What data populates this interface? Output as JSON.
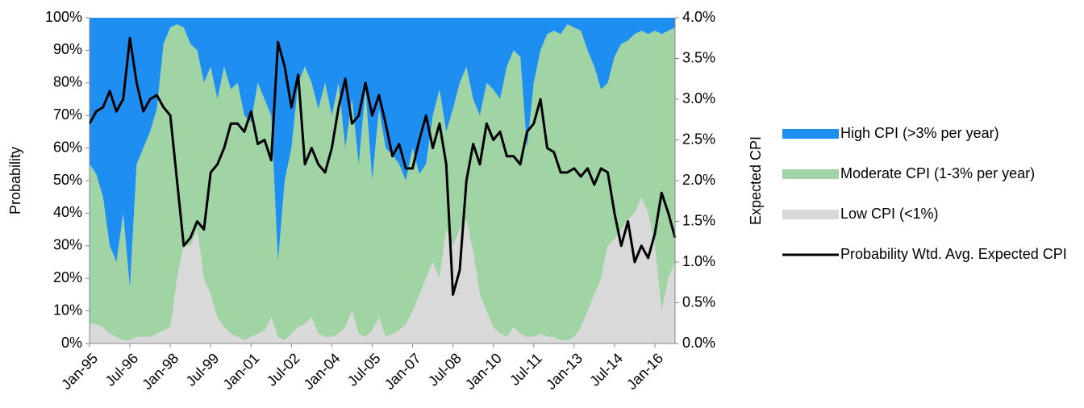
{
  "chart_data": {
    "type": "area",
    "y_label": "Probability",
    "y2_label": "Expected CPI",
    "categories": [
      "Jan-95",
      null,
      null,
      null,
      null,
      null,
      "Jul-96",
      null,
      null,
      null,
      null,
      null,
      "Jan-98",
      null,
      null,
      null,
      null,
      null,
      "Jul-99",
      null,
      null,
      null,
      null,
      null,
      "Jan-01",
      null,
      null,
      null,
      null,
      null,
      "Jul-02",
      null,
      null,
      null,
      null,
      null,
      "Jan-04",
      null,
      null,
      null,
      null,
      null,
      "Jul-05",
      null,
      null,
      null,
      null,
      null,
      "Jan-07",
      null,
      null,
      null,
      null,
      null,
      "Jul-08",
      null,
      null,
      null,
      null,
      null,
      "Jan-10",
      null,
      null,
      null,
      null,
      null,
      "Jul-11",
      null,
      null,
      null,
      null,
      null,
      "Jan-13",
      null,
      null,
      null,
      null,
      null,
      "Jul-14",
      null,
      null,
      null,
      null,
      null,
      "Jan-16",
      null,
      null,
      null
    ],
    "series": [
      {
        "name": "High CPI (>3% per year)",
        "type": "area",
        "color": "#1f8ef1",
        "values": [
          45,
          48,
          55,
          70,
          75,
          60,
          83,
          45,
          40,
          35,
          28,
          8,
          3,
          2,
          3,
          8,
          10,
          20,
          15,
          25,
          15,
          22,
          20,
          30,
          32,
          20,
          25,
          30,
          75,
          50,
          40,
          20,
          15,
          20,
          28,
          20,
          30,
          20,
          40,
          25,
          45,
          22,
          50,
          28,
          40,
          42,
          45,
          50,
          40,
          48,
          45,
          30,
          22,
          35,
          28,
          20,
          15,
          25,
          30,
          20,
          22,
          25,
          15,
          10,
          12,
          40,
          20,
          10,
          5,
          4,
          5,
          2,
          3,
          4,
          10,
          15,
          22,
          20,
          12,
          8,
          7,
          5,
          4,
          5,
          4,
          5,
          4,
          3
        ]
      },
      {
        "name": "Moderate CPI (1-3% per year)",
        "type": "area",
        "color": "#a0d4a4",
        "values": [
          49,
          46,
          40,
          27,
          23,
          39,
          16,
          53,
          58,
          63,
          69,
          88,
          92,
          78,
          67,
          62,
          55,
          60,
          70,
          67,
          80,
          75,
          78,
          69,
          66,
          77,
          71,
          62,
          23,
          49,
          57,
          75,
          79,
          72,
          69,
          78,
          68,
          77,
          55,
          65,
          52,
          76,
          46,
          64,
          58,
          55,
          51,
          44,
          50,
          37,
          35,
          45,
          58,
          30,
          42,
          45,
          47,
          47,
          55,
          70,
          73,
          72,
          83,
          85,
          85,
          58,
          78,
          87,
          93,
          94,
          94,
          97,
          95,
          91,
          80,
          70,
          58,
          50,
          56,
          57,
          55,
          55,
          51,
          55,
          66,
          85,
          76,
          72
        ]
      },
      {
        "name": "Low CPI (<1%)",
        "type": "area",
        "color": "#d9d9d9",
        "values": [
          6,
          6,
          5,
          3,
          2,
          1,
          1,
          2,
          2,
          2,
          3,
          4,
          5,
          20,
          30,
          30,
          35,
          20,
          15,
          8,
          5,
          3,
          2,
          1,
          2,
          3,
          4,
          8,
          2,
          1,
          3,
          5,
          6,
          8,
          3,
          2,
          2,
          3,
          5,
          10,
          3,
          2,
          4,
          8,
          2,
          3,
          4,
          6,
          10,
          15,
          20,
          25,
          20,
          35,
          30,
          35,
          38,
          28,
          15,
          10,
          5,
          3,
          2,
          5,
          3,
          2,
          2,
          3,
          2,
          2,
          1,
          1,
          2,
          5,
          10,
          15,
          20,
          30,
          32,
          35,
          38,
          40,
          45,
          40,
          30,
          10,
          20,
          25
        ]
      },
      {
        "name": "Probability Wtd. Avg. Expected CPI",
        "type": "line",
        "axis": "y2",
        "color": "#000000",
        "values": [
          2.7,
          2.85,
          2.9,
          3.1,
          2.85,
          3.0,
          3.75,
          3.2,
          2.85,
          3.0,
          3.05,
          2.9,
          2.8,
          2.0,
          1.2,
          1.3,
          1.5,
          1.4,
          2.1,
          2.2,
          2.4,
          2.7,
          2.7,
          2.6,
          2.85,
          2.45,
          2.5,
          2.25,
          3.7,
          3.4,
          2.9,
          3.3,
          2.2,
          2.4,
          2.2,
          2.1,
          2.4,
          2.9,
          3.25,
          2.7,
          2.8,
          3.2,
          2.8,
          3.05,
          2.7,
          2.3,
          2.45,
          2.15,
          2.15,
          2.5,
          2.8,
          2.4,
          2.7,
          2.2,
          0.6,
          0.9,
          2.0,
          2.45,
          2.2,
          2.7,
          2.5,
          2.6,
          2.3,
          2.3,
          2.2,
          2.6,
          2.7,
          3.0,
          2.4,
          2.35,
          2.1,
          2.1,
          2.15,
          2.05,
          2.15,
          1.95,
          2.15,
          2.1,
          1.6,
          1.2,
          1.5,
          1.0,
          1.2,
          1.05,
          1.35,
          1.85,
          1.6,
          1.3
        ]
      }
    ],
    "ylim": [
      0,
      100
    ],
    "yticks": [
      {
        "value": 0,
        "label": "0%"
      },
      {
        "value": 10,
        "label": "10%"
      },
      {
        "value": 20,
        "label": "20%"
      },
      {
        "value": 30,
        "label": "30%"
      },
      {
        "value": 40,
        "label": "40%"
      },
      {
        "value": 50,
        "label": "50%"
      },
      {
        "value": 60,
        "label": "60%"
      },
      {
        "value": 70,
        "label": "70%"
      },
      {
        "value": 80,
        "label": "80%"
      },
      {
        "value": 90,
        "label": "90%"
      },
      {
        "value": 100,
        "label": "100%"
      }
    ],
    "y2lim": [
      0,
      4
    ],
    "y2ticks": [
      {
        "value": 0,
        "label": "0.0%"
      },
      {
        "value": 0.5,
        "label": "0.5%"
      },
      {
        "value": 1,
        "label": "1.0%"
      },
      {
        "value": 1.5,
        "label": "1.5%"
      },
      {
        "value": 2,
        "label": "2.0%"
      },
      {
        "value": 2.5,
        "label": "2.5%"
      },
      {
        "value": 3,
        "label": "3.0%"
      },
      {
        "value": 3.5,
        "label": "3.5%"
      },
      {
        "value": 4,
        "label": "4.0%"
      }
    ],
    "legend": "right"
  }
}
